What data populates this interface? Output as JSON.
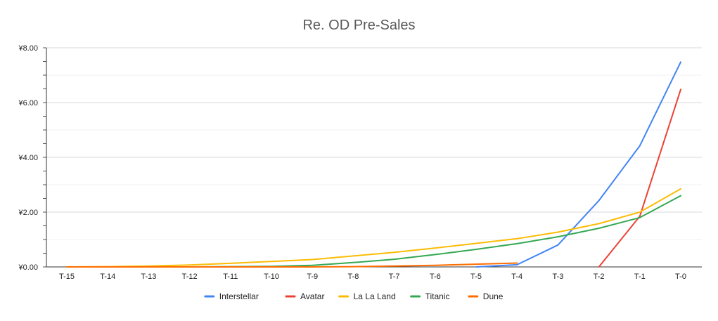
{
  "chart_data": {
    "type": "line",
    "title": "Re. OD Pre-Sales",
    "xlabel": "",
    "ylabel": "",
    "categories": [
      "T-15",
      "T-14",
      "T-13",
      "T-12",
      "T-11",
      "T-10",
      "T-9",
      "T-8",
      "T-7",
      "T-6",
      "T-5",
      "T-4",
      "T-3",
      "T-2",
      "T-1",
      "T-0"
    ],
    "y_ticks": [
      "¥0.00",
      "¥2.00",
      "¥4.00",
      "¥6.00",
      "¥8.00"
    ],
    "ylim": [
      0,
      8
    ],
    "grid": true,
    "legend_position": "bottom",
    "series": [
      {
        "name": "Interstellar",
        "color": "#4285f4",
        "values": [
          null,
          null,
          null,
          null,
          null,
          null,
          null,
          null,
          null,
          null,
          0.0,
          0.08,
          0.8,
          2.42,
          4.42,
          7.48
        ]
      },
      {
        "name": "Avatar",
        "color": "#ea4335",
        "values": [
          null,
          null,
          null,
          null,
          null,
          null,
          null,
          null,
          null,
          null,
          null,
          null,
          null,
          0.0,
          1.85,
          6.48
        ]
      },
      {
        "name": "La La Land",
        "color": "#fbbc04",
        "values": [
          0.0,
          0.01,
          0.03,
          0.07,
          0.13,
          0.2,
          0.27,
          0.4,
          0.53,
          0.69,
          0.86,
          1.03,
          1.27,
          1.58,
          2.0,
          2.85
        ]
      },
      {
        "name": "Titanic",
        "color": "#34a853",
        "values": [
          0.0,
          0.0,
          0.0,
          0.0,
          0.01,
          0.02,
          0.06,
          0.16,
          0.28,
          0.45,
          0.64,
          0.85,
          1.1,
          1.41,
          1.8,
          2.6
        ]
      },
      {
        "name": "Dune",
        "color": "#ff6d01",
        "values": [
          0.0,
          0.0,
          0.0,
          0.0,
          0.0,
          0.0,
          0.0,
          0.01,
          0.03,
          0.06,
          0.1,
          0.14,
          null,
          null,
          null,
          null
        ]
      }
    ]
  }
}
